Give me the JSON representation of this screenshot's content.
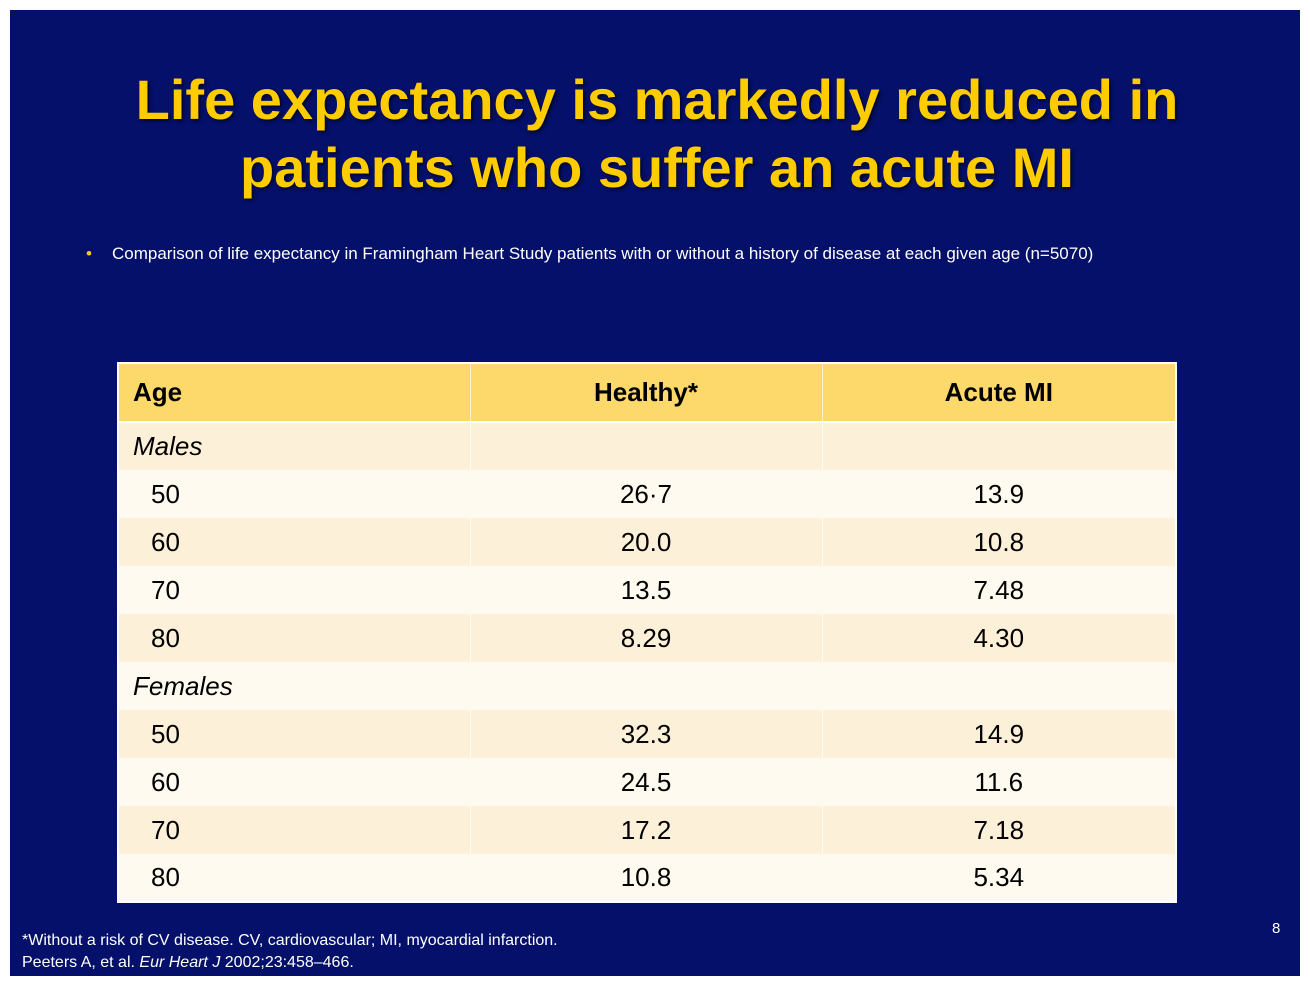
{
  "slide": {
    "title_line1": "Life expectancy is markedly reduced in",
    "title_line2": "patients who suffer an acute MI",
    "bullet_marker": "•",
    "bullet_text": "Comparison of life expectancy in Framingham Heart Study patients with or without a history of disease at each given age (n=5070)",
    "page_number": "8",
    "colors": {
      "background": "#041069",
      "title": "#ffcc00",
      "header_fill": "#fdd96b"
    }
  },
  "table": {
    "headers": [
      "Age",
      "Healthy*",
      "Acute MI"
    ],
    "groups": [
      {
        "label": "Males",
        "rows": [
          [
            "50",
            "26·7",
            "13.9"
          ],
          [
            "60",
            "20.0",
            "10.8"
          ],
          [
            "70",
            "13.5",
            "7.48"
          ],
          [
            "80",
            "8.29",
            "4.30"
          ]
        ]
      },
      {
        "label": "Females",
        "rows": [
          [
            "50",
            "32.3",
            "14.9"
          ],
          [
            "60",
            "24.5",
            "11.6"
          ],
          [
            "70",
            "17.2",
            "7.18"
          ],
          [
            "80",
            "10.8",
            "5.34"
          ]
        ]
      }
    ]
  },
  "footnote": {
    "line1": "*Without a risk of CV disease. CV, cardiovascular; MI, myocardial infarction.",
    "line2_prefix": "Peeters A, et al. ",
    "line2_journal": "Eur Heart J",
    "line2_suffix": " 2002;23:458–466."
  }
}
